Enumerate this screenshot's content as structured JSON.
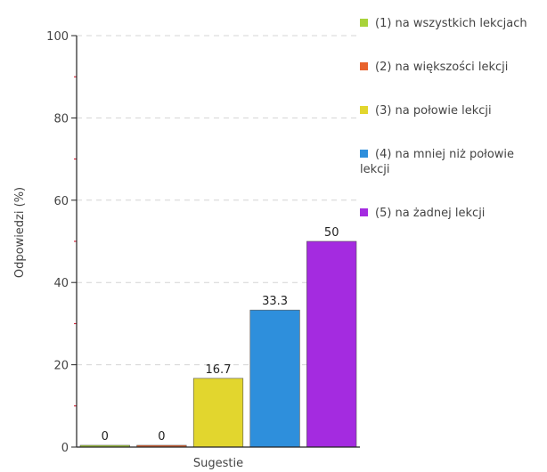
{
  "chart_data": {
    "type": "bar",
    "categories": [
      "(1) na wszystkich lekcjach",
      "(2) na większości lekcji",
      "(3) na połowie lekcji",
      "(4) na mniej niż połowie lekcji",
      "(5) na żadnej lekcji"
    ],
    "values": [
      0,
      0,
      16.7,
      33.3,
      50
    ],
    "data_labels": [
      "0",
      "0",
      "16.7",
      "33.3",
      "50"
    ],
    "colors": [
      "#a8d33a",
      "#e8622c",
      "#e2d62e",
      "#2e8fdc",
      "#a42be0"
    ],
    "xlabel": "Sugestie",
    "ylabel": "Odpowiedzi (%)",
    "ylim": [
      0,
      100
    ],
    "yticks": [
      0,
      20,
      40,
      60,
      80,
      100
    ],
    "grid": true,
    "legend_position": "right",
    "legend": [
      {
        "label": "(1) na wszystkich lekcjach",
        "color": "#a8d33a"
      },
      {
        "label": "(2) na większości lekcji",
        "color": "#e8622c"
      },
      {
        "label": "(3) na połowie lekcji",
        "color": "#e2d62e"
      },
      {
        "label": "(4) na mniej niż połowie lekcji",
        "color": "#2e8fdc"
      },
      {
        "label": "(5) na żadnej lekcji",
        "color": "#a42be0"
      }
    ]
  }
}
